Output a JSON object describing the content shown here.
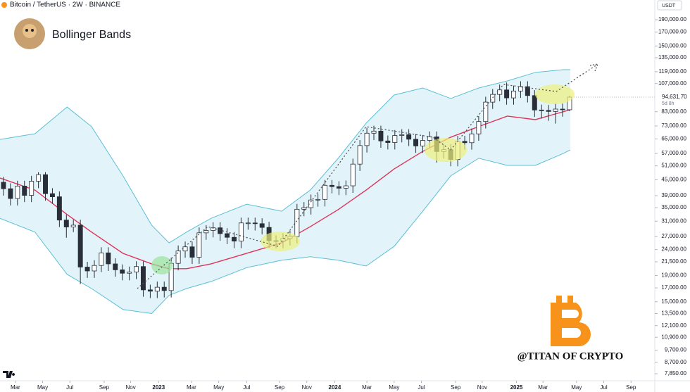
{
  "header": {
    "symbol": "Bitcoin / TetherUS · 2W · BINANCE",
    "indicator": "Bollinger Bands",
    "currency": "USDT",
    "watermark": "@TITAN OF CRYPTO"
  },
  "chart_data": {
    "type": "candlestick",
    "log_scale": true,
    "xlim": [
      -0.5,
      93.2
    ],
    "xticks": [
      {
        "value": 1.7,
        "label": "Mar"
      },
      {
        "value": 5.6,
        "label": "May"
      },
      {
        "value": 9.5,
        "label": "Jul"
      },
      {
        "value": 14.4,
        "label": "Sep"
      },
      {
        "value": 18.2,
        "label": "Nov"
      },
      {
        "value": 22.2,
        "label": "2023"
      },
      {
        "value": 26.9,
        "label": "Mar"
      },
      {
        "value": 30.8,
        "label": "May"
      },
      {
        "value": 34.8,
        "label": "Jul"
      },
      {
        "value": 39.5,
        "label": "Sep"
      },
      {
        "value": 43.4,
        "label": "Nov"
      },
      {
        "value": 47.4,
        "label": "2024"
      },
      {
        "value": 52.0,
        "label": "Mar"
      },
      {
        "value": 55.9,
        "label": "May"
      },
      {
        "value": 59.8,
        "label": "Jul"
      },
      {
        "value": 64.7,
        "label": "Sep"
      },
      {
        "value": 68.5,
        "label": "Nov"
      },
      {
        "value": 73.4,
        "label": "2025"
      },
      {
        "value": 77.2,
        "label": "Mar"
      },
      {
        "value": 82.0,
        "label": "May"
      },
      {
        "value": 85.9,
        "label": "Jul"
      },
      {
        "value": 89.8,
        "label": "Sep"
      }
    ],
    "ylim": [
      7370,
      226900
    ],
    "yticks": [
      {
        "value": 190000,
        "label": "190,000.00"
      },
      {
        "value": 170000,
        "label": "170,000.00"
      },
      {
        "value": 150000,
        "label": "150,000.00"
      },
      {
        "value": 135000,
        "label": "135,000.00"
      },
      {
        "value": 119000,
        "label": "119,000.00"
      },
      {
        "value": 107000,
        "label": "107,000.00"
      },
      {
        "value": 83000,
        "label": "83,000.00"
      },
      {
        "value": 73000,
        "label": "73,000.00"
      },
      {
        "value": 65000,
        "label": "65,000.00"
      },
      {
        "value": 57000,
        "label": "57,000.00"
      },
      {
        "value": 51000,
        "label": "51,000.00"
      },
      {
        "value": 45000,
        "label": "45,000.00"
      },
      {
        "value": 39000,
        "label": "39,000.00"
      },
      {
        "value": 35000,
        "label": "35,000.00"
      },
      {
        "value": 31000,
        "label": "31,000.00"
      },
      {
        "value": 27000,
        "label": "27,000.00"
      },
      {
        "value": 24000,
        "label": "24,000.00"
      },
      {
        "value": 21500,
        "label": "21,500.00"
      },
      {
        "value": 19000,
        "label": "19,000.00"
      },
      {
        "value": 17000,
        "label": "17,000.00"
      },
      {
        "value": 15000,
        "label": "15,000.00"
      },
      {
        "value": 13500,
        "label": "13,500.00"
      },
      {
        "value": 12100,
        "label": "12,100.00"
      },
      {
        "value": 10900,
        "label": "10,900.00"
      },
      {
        "value": 9700,
        "label": "9,700.00"
      },
      {
        "value": 8700,
        "label": "8,700.00"
      },
      {
        "value": 7850,
        "label": "7,850.00"
      }
    ],
    "candles": {
      "open": [
        44000,
        41500,
        38000,
        42500,
        39100,
        44400,
        47100,
        39700,
        38600,
        31300,
        29400,
        29900,
        20500,
        19800,
        20800,
        23300,
        21100,
        20000,
        19400,
        19600,
        20600,
        16700,
        16500,
        17100,
        16600,
        21200,
        23700,
        24600,
        22400,
        27900,
        28500,
        29200,
        27700,
        26800,
        25900,
        30500,
        30500,
        30300,
        29300,
        26000,
        25900,
        26500,
        27000,
        34500,
        35000,
        37500,
        37700,
        42800,
        42300,
        41700,
        42600,
        51800,
        61200,
        68400,
        69700,
        63800,
        62900,
        67000,
        67500,
        64800,
        61000,
        64100,
        66200,
        58000,
        59000,
        54000,
        63600,
        62800,
        68000,
        76000,
        90500,
        97000,
        101000,
        94000,
        100000,
        104000,
        96000,
        84300,
        84000,
        83200,
        85000,
        84500
      ],
      "high": [
        46200,
        43600,
        44600,
        44600,
        46600,
        48200,
        48200,
        41700,
        40500,
        32900,
        31400,
        31400,
        21500,
        21800,
        24500,
        24500,
        22200,
        21000,
        20600,
        21600,
        21600,
        17500,
        18000,
        18000,
        22300,
        24900,
        25800,
        25800,
        29300,
        29900,
        30700,
        30700,
        29100,
        28100,
        32000,
        32000,
        32000,
        31800,
        30800,
        27300,
        27800,
        28400,
        36200,
        36800,
        39400,
        39600,
        44900,
        44900,
        44400,
        44700,
        54400,
        64300,
        71800,
        73200,
        73200,
        67000,
        70400,
        70900,
        70900,
        68000,
        67300,
        69500,
        69500,
        62000,
        62000,
        66800,
        66800,
        71400,
        79800,
        95000,
        101800,
        106000,
        108000,
        105000,
        109200,
        109200,
        100800,
        88500,
        88200,
        89300,
        89300,
        95800
      ],
      "low": [
        39000,
        35700,
        35700,
        36800,
        36800,
        41700,
        37300,
        36300,
        29400,
        26700,
        28100,
        17600,
        18600,
        18600,
        19600,
        19800,
        18800,
        18200,
        18200,
        18400,
        15700,
        15500,
        15500,
        15600,
        15600,
        19900,
        22300,
        21100,
        21100,
        26200,
        26800,
        26000,
        25200,
        24300,
        24300,
        28700,
        28500,
        27500,
        24400,
        24300,
        24300,
        24900,
        25400,
        32400,
        32900,
        35300,
        35400,
        39800,
        39200,
        39200,
        40000,
        48700,
        57500,
        64300,
        60000,
        59100,
        59100,
        63000,
        60900,
        57300,
        57300,
        60300,
        52500,
        54500,
        50800,
        50800,
        59000,
        59000,
        63900,
        71400,
        85100,
        91200,
        88400,
        88400,
        94000,
        90200,
        79200,
        78000,
        76500,
        74600,
        79400,
        83500
      ],
      "close": [
        41500,
        38000,
        42500,
        39100,
        44400,
        47100,
        39700,
        38600,
        31300,
        29400,
        29900,
        20500,
        19800,
        20800,
        23300,
        21100,
        20000,
        19400,
        19600,
        20600,
        16700,
        16500,
        17100,
        16600,
        21200,
        23700,
        24600,
        22400,
        27900,
        28500,
        29200,
        27700,
        26800,
        25900,
        30500,
        30500,
        30300,
        29300,
        26000,
        25900,
        26500,
        27000,
        34500,
        35000,
        37500,
        37700,
        42800,
        42300,
        41700,
        42600,
        51800,
        61200,
        68400,
        69700,
        63800,
        62900,
        67000,
        67500,
        64800,
        61000,
        64100,
        66200,
        58000,
        59000,
        54000,
        63600,
        62800,
        68000,
        76000,
        90500,
        97000,
        101000,
        94000,
        100000,
        104000,
        96000,
        84300,
        84000,
        83200,
        85000,
        84500,
        94631.7
      ]
    },
    "up_color": "#ffffff",
    "down_color": "#2a2e39",
    "bands": {
      "x": [
        -0.5,
        4.5,
        9.1,
        12.6,
        17.1,
        21.2,
        23.7,
        26.2,
        29.7,
        34.8,
        39.8,
        43.9,
        47.9,
        51.9,
        55.9,
        60.0,
        64.0,
        68.0,
        72.1,
        76.1,
        80.1,
        81.1
      ],
      "upper": [
        64700,
        68100,
        86600,
        72600,
        46600,
        29900,
        25500,
        28100,
        31800,
        36100,
        33900,
        41000,
        54600,
        74900,
        96500,
        102800,
        93500,
        102800,
        109500,
        118200,
        121200,
        121200
      ],
      "middle": [
        45700,
        41000,
        32900,
        28100,
        23200,
        21100,
        20200,
        20200,
        21100,
        23200,
        25500,
        29500,
        34400,
        41000,
        49600,
        58100,
        66000,
        72600,
        79800,
        77300,
        83000,
        84500
      ],
      "lower": [
        31800,
        28100,
        19200,
        16900,
        14000,
        13500,
        15900,
        16900,
        18000,
        20400,
        21800,
        22500,
        21800,
        20700,
        24700,
        33900,
        46600,
        54600,
        51200,
        51200,
        57000,
        58900
      ],
      "band_color": "#5bbfd5",
      "fill_color": "#e2f4f9",
      "middle_color": "#e0335a"
    },
    "last_price": {
      "value": 94631.7,
      "label": "94,631.70"
    },
    "countdown": "5d 8h"
  }
}
